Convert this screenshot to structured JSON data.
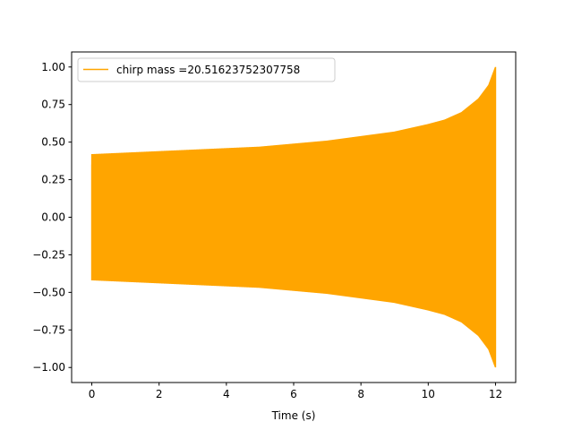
{
  "chart_data": {
    "type": "line",
    "xlabel": "Time (s)",
    "ylabel": "",
    "xlim": [
      -0.6,
      12.6
    ],
    "ylim": [
      -1.1,
      1.1
    ],
    "x_ticks": [
      0,
      2,
      4,
      6,
      8,
      10,
      12
    ],
    "x_tick_labels": [
      "0",
      "2",
      "4",
      "6",
      "8",
      "10",
      "12"
    ],
    "y_ticks": [
      -1.0,
      -0.75,
      -0.5,
      -0.25,
      0.0,
      0.25,
      0.5,
      0.75,
      1.0
    ],
    "y_tick_labels": [
      "−1.00",
      "−0.75",
      "−0.50",
      "−0.25",
      "0.00",
      "0.25",
      "0.50",
      "0.75",
      "1.00"
    ],
    "grid": false,
    "legend_position": "top-left",
    "series": [
      {
        "name": "chirp mass =20.51623752307758",
        "color": "#ffa500",
        "t_start": 0,
        "t_end": 12,
        "initial_value": 0.35,
        "envelope": {
          "t": [
            0,
            1,
            2,
            3,
            4,
            5,
            6,
            7,
            8,
            9,
            10,
            10.5,
            11,
            11.5,
            11.8,
            12
          ],
          "amplitude": [
            0.42,
            0.43,
            0.44,
            0.45,
            0.46,
            0.47,
            0.49,
            0.51,
            0.54,
            0.57,
            0.62,
            0.65,
            0.7,
            0.79,
            0.88,
            1.0
          ]
        }
      }
    ]
  }
}
